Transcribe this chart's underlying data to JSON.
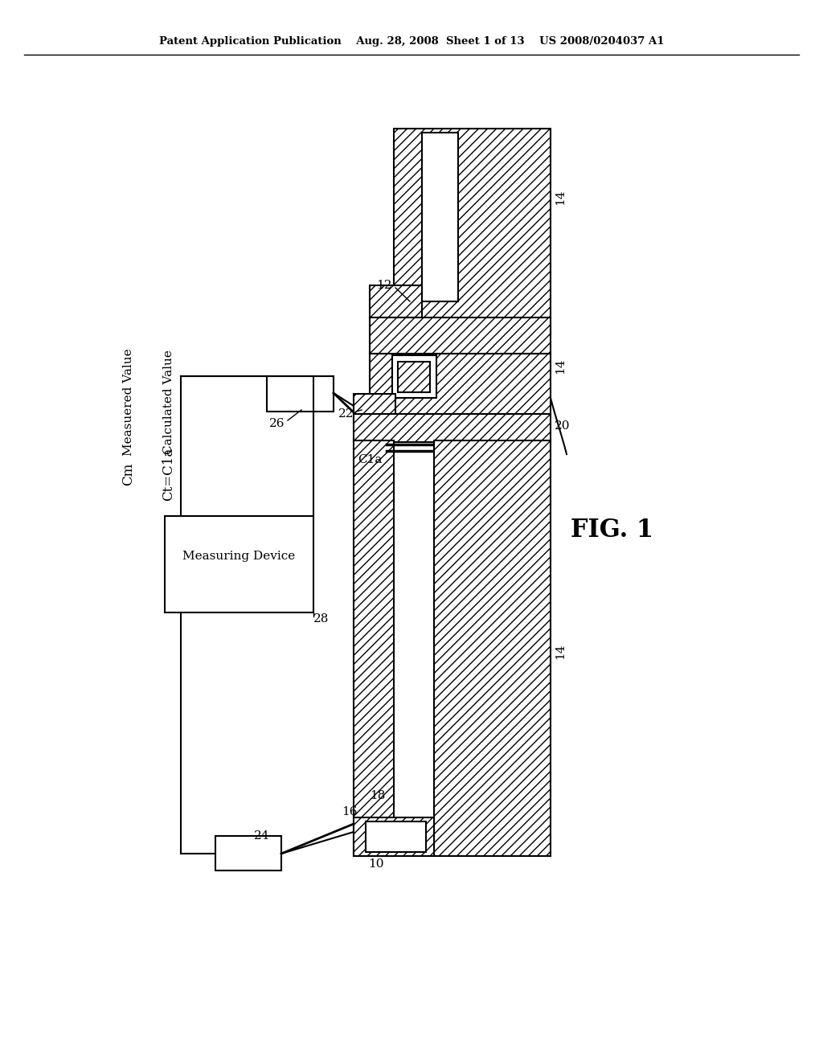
{
  "bg_color": "#ffffff",
  "title_text": "Patent Application Publication    Aug. 28, 2008  Sheet 1 of 13    US 2008/0204037 A1",
  "fig_label": "FIG. 1",
  "labels": {
    "measured_value": "Measuered Value",
    "Cm": "Cm",
    "calculated_value": "Calculated Value",
    "Ct_eq": "Ct=C1a",
    "measuring_device": "Measuring Device",
    "ref_10": "10",
    "ref_12": "12",
    "ref_14_1": "14",
    "ref_14_2": "14",
    "ref_14_3": "14",
    "ref_16": "16",
    "ref_18": "18",
    "ref_20": "20",
    "ref_22": "22",
    "ref_24": "24",
    "ref_26": "26",
    "ref_28": "28",
    "ref_C1a": "C1a"
  },
  "hatch_pattern": "///",
  "line_color": "#000000",
  "hatch_color": "#000000",
  "face_color": "#ffffff"
}
